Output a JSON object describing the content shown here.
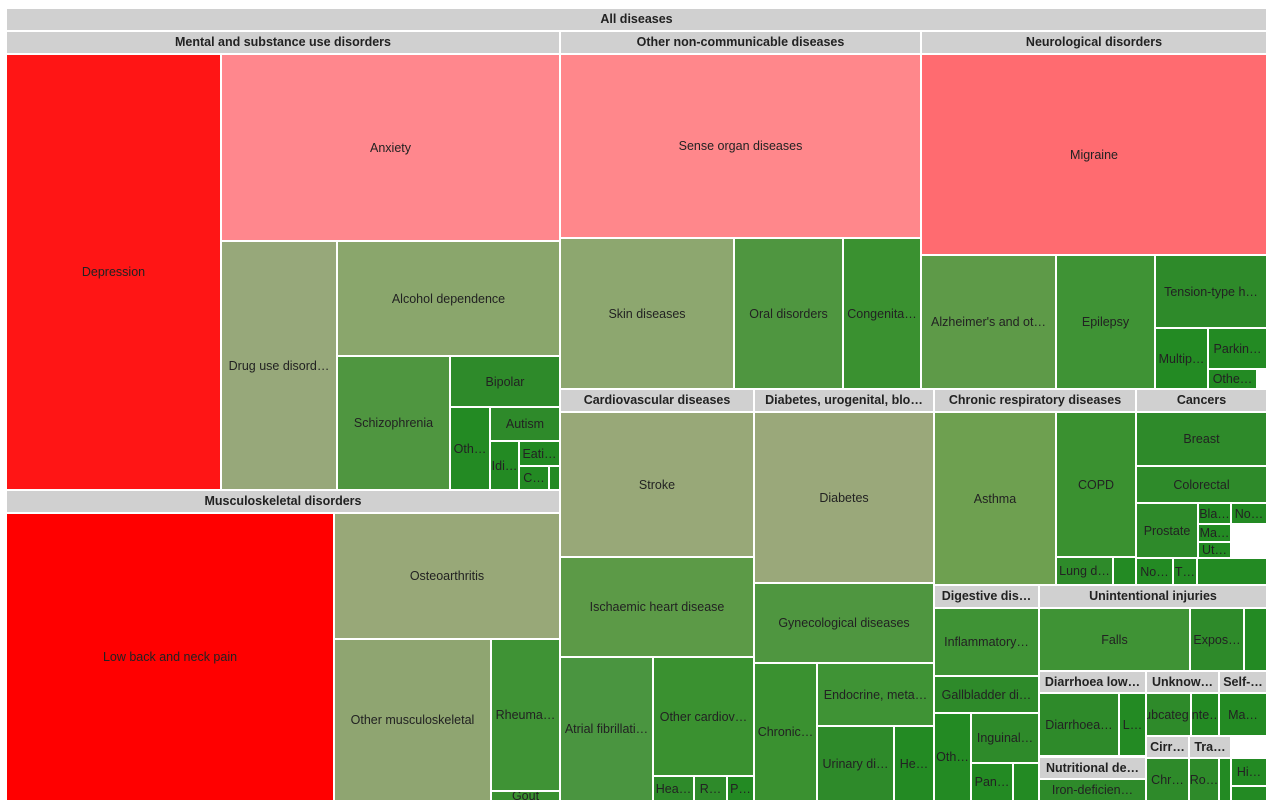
{
  "root": "All diseases",
  "groups": [
    {
      "label": "Mental and substance use disorders",
      "items": [
        "Depression",
        "Anxiety",
        "Drug use disord…",
        "Alcohol dependence",
        "Schizophrenia",
        "Bipolar",
        "Oth…",
        "Autism",
        "Idi…",
        "Eati…",
        "C…"
      ]
    },
    {
      "label": "Musculoskeletal disorders",
      "items": [
        "Low back and neck pain",
        "Osteoarthritis",
        "Other musculoskeletal",
        "Rheuma…",
        "Gout"
      ]
    },
    {
      "label": "Other non-communicable diseases",
      "items": [
        "Sense organ diseases",
        "Skin diseases",
        "Oral disorders",
        "Congenita…"
      ]
    },
    {
      "label": "Neurological disorders",
      "items": [
        "Migraine",
        "Alzheimer's and ot…",
        "Epilepsy",
        "Tension-type h…",
        "Multip…",
        "Parkin…",
        "Othe…"
      ]
    },
    {
      "label": "Cardiovascular diseases",
      "items": [
        "Stroke",
        "Ischaemic heart disease",
        "Atrial fibrillati…",
        "Other cardiov…",
        "Hea…",
        "R…",
        "P…"
      ]
    },
    {
      "label": "Diabetes, urogenital, blo…",
      "items": [
        "Diabetes",
        "Gynecological diseases",
        "Chronic…",
        "Endocrine, meta…",
        "Urinary di…",
        "He…"
      ]
    },
    {
      "label": "Chronic respiratory diseases",
      "items": [
        "Asthma",
        "COPD",
        "Lung d…"
      ]
    },
    {
      "label": "Cancers",
      "items": [
        "Breast",
        "Colorectal",
        "Prostate",
        "Bla…",
        "No…",
        "Ma…",
        "Ut…",
        "No…",
        "T…"
      ]
    },
    {
      "label": "Digestive dis…",
      "items": [
        "Inflammatory…",
        "Gallbladder di…",
        "Oth…",
        "Inguinal…",
        "Pan…"
      ]
    },
    {
      "label": "Unintentional injuries",
      "items": [
        "Falls",
        "Expos…"
      ]
    },
    {
      "label": "Diarrhoea low…",
      "items": [
        "Diarrhoea…",
        "L…"
      ]
    },
    {
      "label": "Unknow…",
      "items": [
        "Subcateg…",
        "Inte…"
      ]
    },
    {
      "label": "Self-…",
      "items": [
        "Ma…"
      ]
    },
    {
      "label": "Cirr…",
      "items": [
        "Chr…"
      ]
    },
    {
      "label": "Tra…",
      "items": [
        "Ro…",
        "Hi…"
      ]
    },
    {
      "label": "Nutritional de…",
      "items": [
        "Iron-deficien…"
      ]
    }
  ]
}
